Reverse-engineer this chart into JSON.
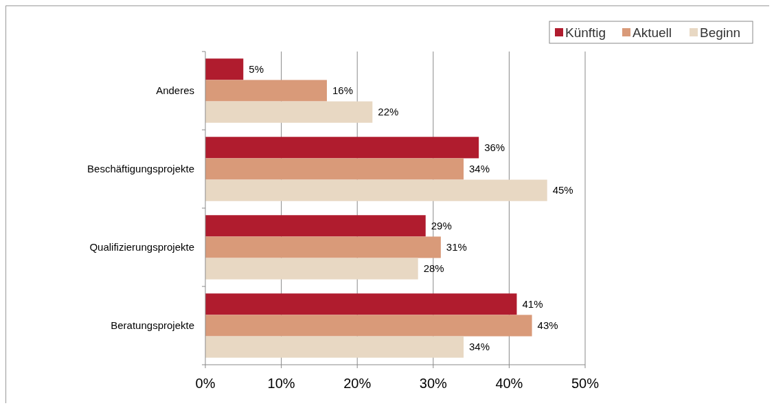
{
  "chart_data": {
    "type": "bar",
    "orientation": "horizontal",
    "categories": [
      "Anderes",
      "Beschäftigungsprojekte",
      "Qualifizierungsprojekte",
      "Beratungsprojekte"
    ],
    "series": [
      {
        "name": "Künftig",
        "color": "#b01c2e",
        "values": [
          5,
          36,
          29,
          41
        ],
        "value_labels": [
          "5%",
          "36%",
          "29%",
          "41%"
        ]
      },
      {
        "name": "Aktuell",
        "color": "#d99a79",
        "values": [
          16,
          34,
          31,
          43
        ],
        "value_labels": [
          "16%",
          "34%",
          "31%",
          "43%"
        ]
      },
      {
        "name": "Beginn",
        "color": "#e8d8c3",
        "values": [
          22,
          45,
          28,
          34
        ],
        "value_labels": [
          "22%",
          "45%",
          "28%",
          "34%"
        ]
      }
    ],
    "xlim": [
      0,
      50
    ],
    "xticks": [
      {
        "value": 0,
        "label": "0%"
      },
      {
        "value": 10,
        "label": "10%"
      },
      {
        "value": 20,
        "label": "20%"
      },
      {
        "value": 30,
        "label": "30%"
      },
      {
        "value": 40,
        "label": "40%"
      },
      {
        "value": 50,
        "label": "50%"
      }
    ],
    "grid": "x",
    "legend": "top right"
  }
}
